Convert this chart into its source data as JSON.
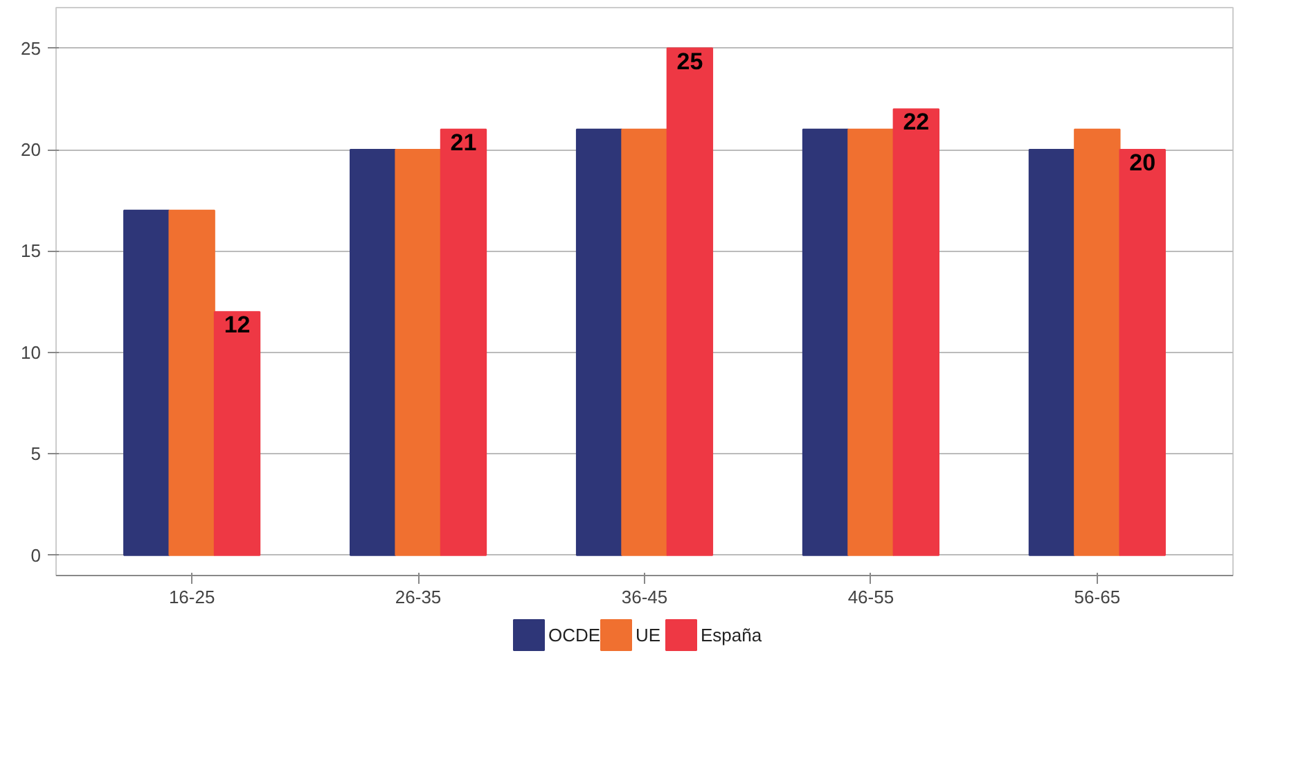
{
  "chart_data": {
    "type": "bar",
    "categories": [
      "16-25",
      "26-35",
      "36-45",
      "46-55",
      "56-65"
    ],
    "series": [
      {
        "name": "OCDE",
        "color": "#2e3678",
        "values": [
          17,
          20,
          21,
          21,
          20
        ]
      },
      {
        "name": "UE",
        "color": "#f07030",
        "values": [
          17,
          20,
          21,
          21,
          21
        ]
      },
      {
        "name": "España",
        "color": "#ee3844",
        "values": [
          12,
          21,
          25,
          22,
          20
        ],
        "value_labels": [
          "12",
          "21",
          "25",
          "22",
          "20"
        ]
      }
    ],
    "ylim": [
      -1,
      27
    ],
    "yticks": [
      0,
      5,
      10,
      15,
      20,
      25
    ],
    "grid": "y",
    "legend": "bottom"
  }
}
